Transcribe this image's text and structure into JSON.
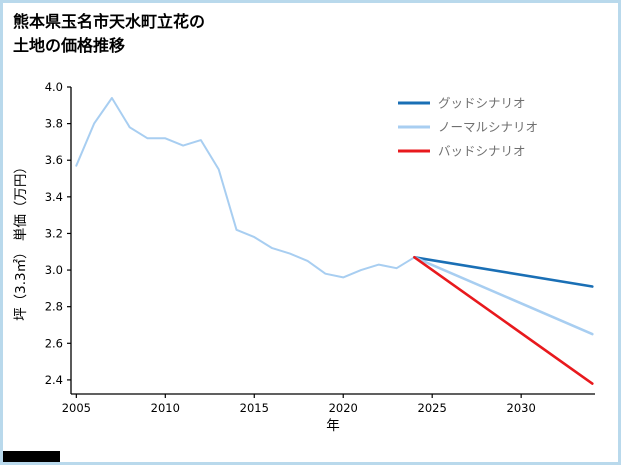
{
  "header": {
    "title_line1": "熊本県玉名市天水町立花の",
    "title_line2": "土地の価格推移"
  },
  "chart_data": {
    "type": "line",
    "title": "熊本県玉名市天水町立花の土地の価格推移",
    "xlabel": "年",
    "ylabel": "坪（3.3㎡）  単価（万円）",
    "xlim": [
      2004.7,
      2034.15
    ],
    "ylim": [
      2.323,
      4.0
    ],
    "xticks": [
      2005,
      2010,
      2015,
      2020,
      2025,
      2030
    ],
    "yticks": [
      2.4,
      2.6,
      2.8,
      3.0,
      3.2,
      3.4,
      3.6,
      3.8,
      4.0
    ],
    "grid": false,
    "legend_position": "upper right",
    "series": [
      {
        "key": "actual",
        "color": "#a8cef1",
        "width": 2,
        "x": [
          2005,
          2006,
          2007,
          2008,
          2009,
          2010,
          2011,
          2012,
          2013,
          2014,
          2015,
          2016,
          2017,
          2018,
          2019,
          2020,
          2021,
          2022,
          2023,
          2024
        ],
        "y": [
          3.57,
          3.8,
          3.94,
          3.78,
          3.72,
          3.72,
          3.68,
          3.71,
          3.55,
          3.22,
          3.18,
          3.12,
          3.09,
          3.05,
          2.98,
          2.96,
          3.0,
          3.03,
          3.01,
          3.07
        ]
      },
      {
        "key": "good-scenario",
        "label": "グッドシナリオ",
        "color": "#1a6fb5",
        "width": 2.6,
        "x": [
          2024,
          2034
        ],
        "y": [
          3.07,
          2.91
        ]
      },
      {
        "key": "normal-scenario",
        "label": "ノーマルシナリオ",
        "color": "#a8cef1",
        "width": 2.6,
        "x": [
          2024,
          2034
        ],
        "y": [
          3.07,
          2.65
        ]
      },
      {
        "key": "bad-scenario",
        "label": "バッドシナリオ",
        "color": "#e8191d",
        "width": 2.6,
        "x": [
          2024,
          2034
        ],
        "y": [
          3.07,
          2.38
        ]
      }
    ],
    "legend": [
      {
        "label": "グッドシナリオ",
        "color": "#1a6fb5"
      },
      {
        "label": "ノーマルシナリオ",
        "color": "#a8cef1"
      },
      {
        "label": "バッドシナリオ",
        "color": "#e8191d"
      }
    ]
  },
  "colors": {
    "border": "#b9d9ec",
    "axis": "#000000",
    "legend_text": "#707070"
  }
}
